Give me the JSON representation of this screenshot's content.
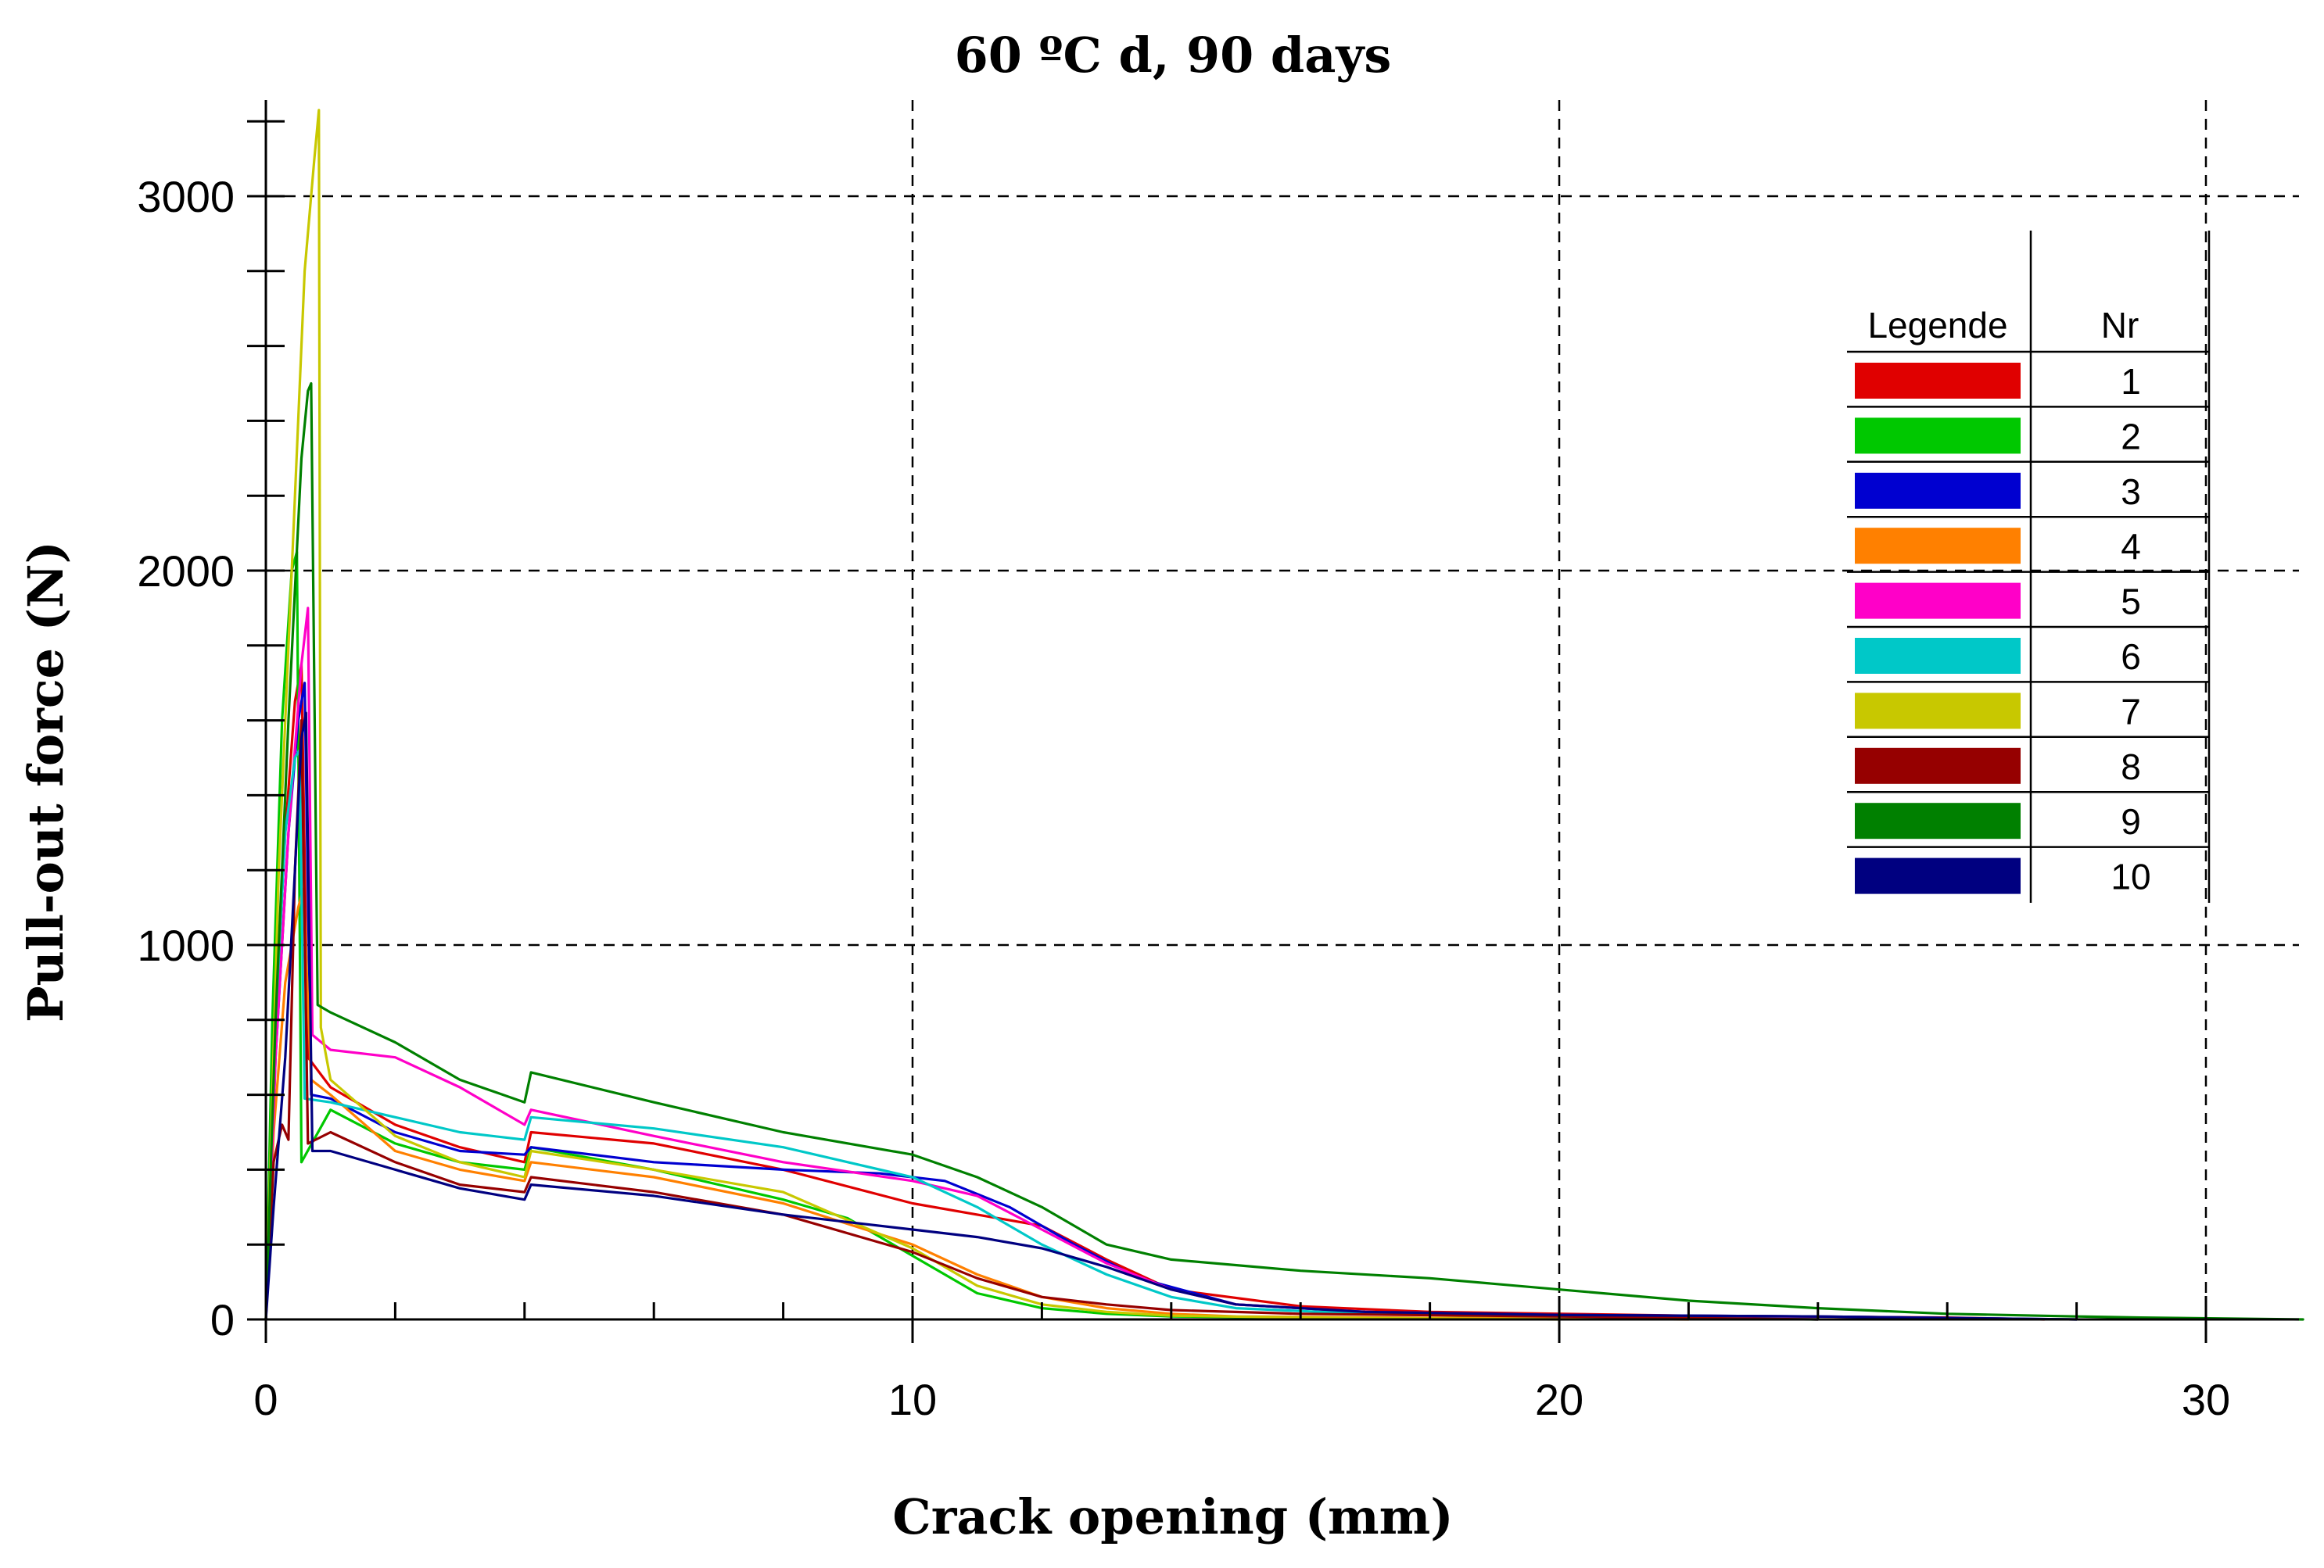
{
  "chart_data": {
    "type": "line",
    "title": "60 ºC d, 90 days",
    "xlabel": "Crack opening (mm)",
    "ylabel": "Pull-out force (N)",
    "xlim": [
      0,
      31.5
    ],
    "ylim": [
      0,
      3250
    ],
    "x_major_ticks": [
      0,
      10,
      20,
      30
    ],
    "y_major_ticks": [
      0,
      1000,
      2000,
      3000
    ],
    "x_tick_labels": [
      "0",
      "10",
      "20",
      "30"
    ],
    "y_tick_labels": [
      "0",
      "1000",
      "2000",
      "3000"
    ],
    "grid": true,
    "legend": {
      "position": "right",
      "header_label": "Legende",
      "header_nr": "Nr"
    },
    "series": [
      {
        "name": "1",
        "color": "#e00000",
        "x": [
          0,
          0.12,
          0.3,
          0.45,
          0.55,
          0.65,
          1.0,
          2.0,
          3.0,
          4.0,
          4.1,
          6.0,
          8.0,
          10.0,
          11.0,
          12.0,
          13.0,
          14.0,
          16.0,
          18.0,
          22.0,
          26.0,
          27.5
        ],
        "y": [
          0,
          700,
          1300,
          1650,
          1750,
          700,
          620,
          520,
          460,
          420,
          500,
          470,
          400,
          310,
          280,
          250,
          160,
          80,
          35,
          20,
          10,
          5,
          0
        ]
      },
      {
        "name": "2",
        "color": "#00c800",
        "x": [
          0,
          0.1,
          0.25,
          0.4,
          0.48,
          0.55,
          1.0,
          2.0,
          3.0,
          4.0,
          4.1,
          6.0,
          8.0,
          9.0,
          10.0,
          11.0,
          12.0,
          13.0,
          14.0,
          16.0,
          20.0,
          24.0
        ],
        "y": [
          0,
          800,
          1600,
          2000,
          2050,
          420,
          560,
          470,
          420,
          400,
          460,
          400,
          320,
          270,
          170,
          70,
          30,
          15,
          8,
          5,
          3,
          0
        ]
      },
      {
        "name": "3",
        "color": "#0000d0",
        "x": [
          0,
          0.15,
          0.35,
          0.5,
          0.6,
          0.7,
          1.0,
          2.0,
          3.0,
          4.0,
          4.1,
          6.0,
          8.0,
          9.5,
          10.5,
          11.5,
          12.5,
          13.5,
          15.0,
          17.0,
          20.0,
          24.0,
          28.0
        ],
        "y": [
          0,
          700,
          1300,
          1600,
          1700,
          600,
          590,
          500,
          450,
          440,
          460,
          420,
          400,
          390,
          370,
          300,
          200,
          110,
          40,
          20,
          12,
          8,
          0
        ]
      },
      {
        "name": "4",
        "color": "#ff8000",
        "x": [
          0,
          0.12,
          0.3,
          0.5,
          0.58,
          0.7,
          1.0,
          2.0,
          3.0,
          4.0,
          4.1,
          6.0,
          8.0,
          10.0,
          11.0,
          12.0,
          13.0,
          14.0,
          15.0,
          18.0,
          22.0
        ],
        "y": [
          0,
          500,
          900,
          1100,
          1150,
          640,
          600,
          450,
          400,
          370,
          420,
          380,
          310,
          200,
          120,
          60,
          30,
          15,
          8,
          4,
          0
        ]
      },
      {
        "name": "5",
        "color": "#ff00c8",
        "x": [
          0,
          0.15,
          0.35,
          0.55,
          0.65,
          0.72,
          1.0,
          2.0,
          3.0,
          4.0,
          4.1,
          6.0,
          8.0,
          10.0,
          11.0,
          12.0,
          13.0,
          14.0,
          15.0,
          17.0,
          20.0,
          24.0
        ],
        "y": [
          0,
          700,
          1300,
          1750,
          1900,
          760,
          720,
          700,
          620,
          520,
          560,
          490,
          420,
          370,
          330,
          240,
          150,
          80,
          40,
          20,
          10,
          0
        ]
      },
      {
        "name": "6",
        "color": "#00c8c8",
        "x": [
          0,
          0.12,
          0.3,
          0.45,
          0.52,
          0.6,
          1.0,
          2.0,
          3.0,
          4.0,
          4.1,
          6.0,
          8.0,
          10.0,
          11.0,
          12.0,
          13.0,
          14.0,
          15.0,
          17.0,
          20.0,
          24.0
        ],
        "y": [
          0,
          700,
          1300,
          1500,
          1520,
          590,
          580,
          540,
          500,
          480,
          540,
          510,
          460,
          380,
          300,
          200,
          120,
          60,
          30,
          15,
          8,
          0
        ]
      },
      {
        "name": "7",
        "color": "#c8c800",
        "x": [
          0,
          0.2,
          0.4,
          0.6,
          0.75,
          0.82,
          0.85,
          1.0,
          2.0,
          3.0,
          4.0,
          4.1,
          6.0,
          8.0,
          10.0,
          11.0,
          12.0,
          13.0,
          14.0,
          16.0,
          20.0
        ],
        "y": [
          0,
          1200,
          2000,
          2800,
          3100,
          3230,
          780,
          640,
          490,
          420,
          380,
          450,
          400,
          340,
          190,
          90,
          40,
          20,
          10,
          5,
          0
        ]
      },
      {
        "name": "8",
        "color": "#960000",
        "x": [
          0,
          0.12,
          0.25,
          0.35,
          0.45,
          0.55,
          0.65,
          1.0,
          2.0,
          3.0,
          4.0,
          4.1,
          6.0,
          8.0,
          10.0,
          11.0,
          12.0,
          13.0,
          14.0,
          16.0,
          20.0,
          24.0
        ],
        "y": [
          0,
          420,
          520,
          480,
          1200,
          1600,
          470,
          500,
          420,
          360,
          340,
          380,
          340,
          280,
          180,
          110,
          60,
          40,
          25,
          15,
          8,
          0
        ]
      },
      {
        "name": "9",
        "color": "#008000",
        "x": [
          0,
          0.15,
          0.35,
          0.55,
          0.65,
          0.7,
          0.8,
          1.0,
          2.0,
          3.0,
          4.0,
          4.1,
          6.0,
          8.0,
          10.0,
          11.0,
          12.0,
          12.5,
          13.0,
          14.0,
          16.0,
          18.0,
          20.0,
          22.0,
          24.0,
          26.0,
          28.0,
          29.0,
          31.5
        ],
        "y": [
          0,
          800,
          1600,
          2300,
          2480,
          2500,
          840,
          820,
          740,
          640,
          580,
          660,
          580,
          500,
          440,
          380,
          300,
          250,
          200,
          160,
          130,
          110,
          80,
          50,
          30,
          15,
          8,
          5,
          0
        ]
      },
      {
        "name": "10",
        "color": "#000080",
        "x": [
          0,
          0.12,
          0.3,
          0.45,
          0.55,
          0.62,
          0.72,
          1.0,
          2.0,
          3.0,
          4.0,
          4.1,
          6.0,
          8.0,
          10.0,
          11.0,
          12.0,
          13.0,
          14.0,
          15.0,
          17.0,
          20.0,
          24.0,
          28.0
        ],
        "y": [
          0,
          300,
          700,
          1200,
          1550,
          1620,
          450,
          450,
          400,
          350,
          320,
          360,
          330,
          280,
          240,
          220,
          190,
          140,
          80,
          40,
          20,
          12,
          8,
          0
        ]
      }
    ]
  }
}
